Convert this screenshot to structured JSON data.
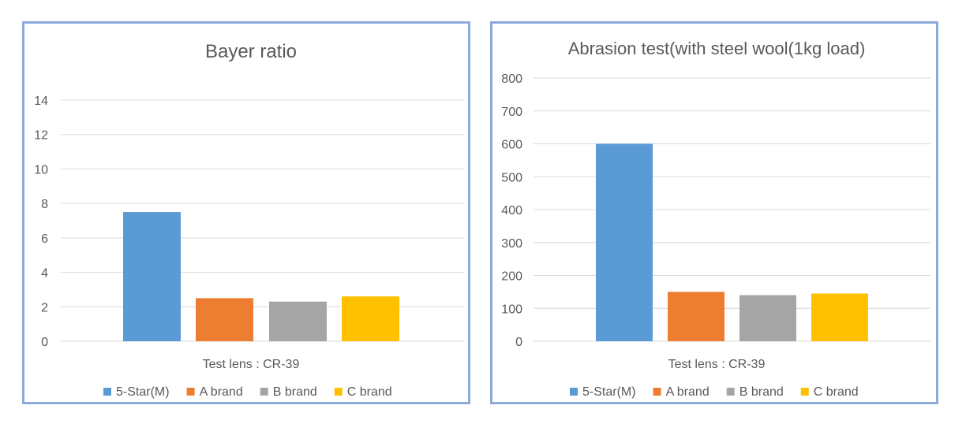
{
  "chart_data": [
    {
      "type": "bar",
      "title": "Bayer ratio",
      "categories": [
        "Test lens : CR-39"
      ],
      "series": [
        {
          "name": "5-Star(M)",
          "values": [
            7.5
          ],
          "color": "#5b9bd5"
        },
        {
          "name": "A brand",
          "values": [
            2.5
          ],
          "color": "#ed7d31"
        },
        {
          "name": "B brand",
          "values": [
            2.3
          ],
          "color": "#a5a5a5"
        },
        {
          "name": "C brand",
          "values": [
            2.6
          ],
          "color": "#ffc000"
        }
      ],
      "ylim": [
        0,
        14
      ],
      "yticks": [
        0,
        2,
        4,
        6,
        8,
        10,
        12,
        14
      ],
      "grid": true,
      "legend": "bottom"
    },
    {
      "type": "bar",
      "title": "Abrasion test(with steel wool(1kg load)",
      "categories": [
        "Test lens : CR-39"
      ],
      "series": [
        {
          "name": "5-Star(M)",
          "values": [
            600
          ],
          "color": "#5b9bd5"
        },
        {
          "name": "A brand",
          "values": [
            150
          ],
          "color": "#ed7d31"
        },
        {
          "name": "B brand",
          "values": [
            140
          ],
          "color": "#a5a5a5"
        },
        {
          "name": "C brand",
          "values": [
            145
          ],
          "color": "#ffc000"
        }
      ],
      "ylim": [
        0,
        800
      ],
      "yticks": [
        0,
        100,
        200,
        300,
        400,
        500,
        600,
        700,
        800
      ],
      "grid": true,
      "legend": "bottom"
    }
  ]
}
